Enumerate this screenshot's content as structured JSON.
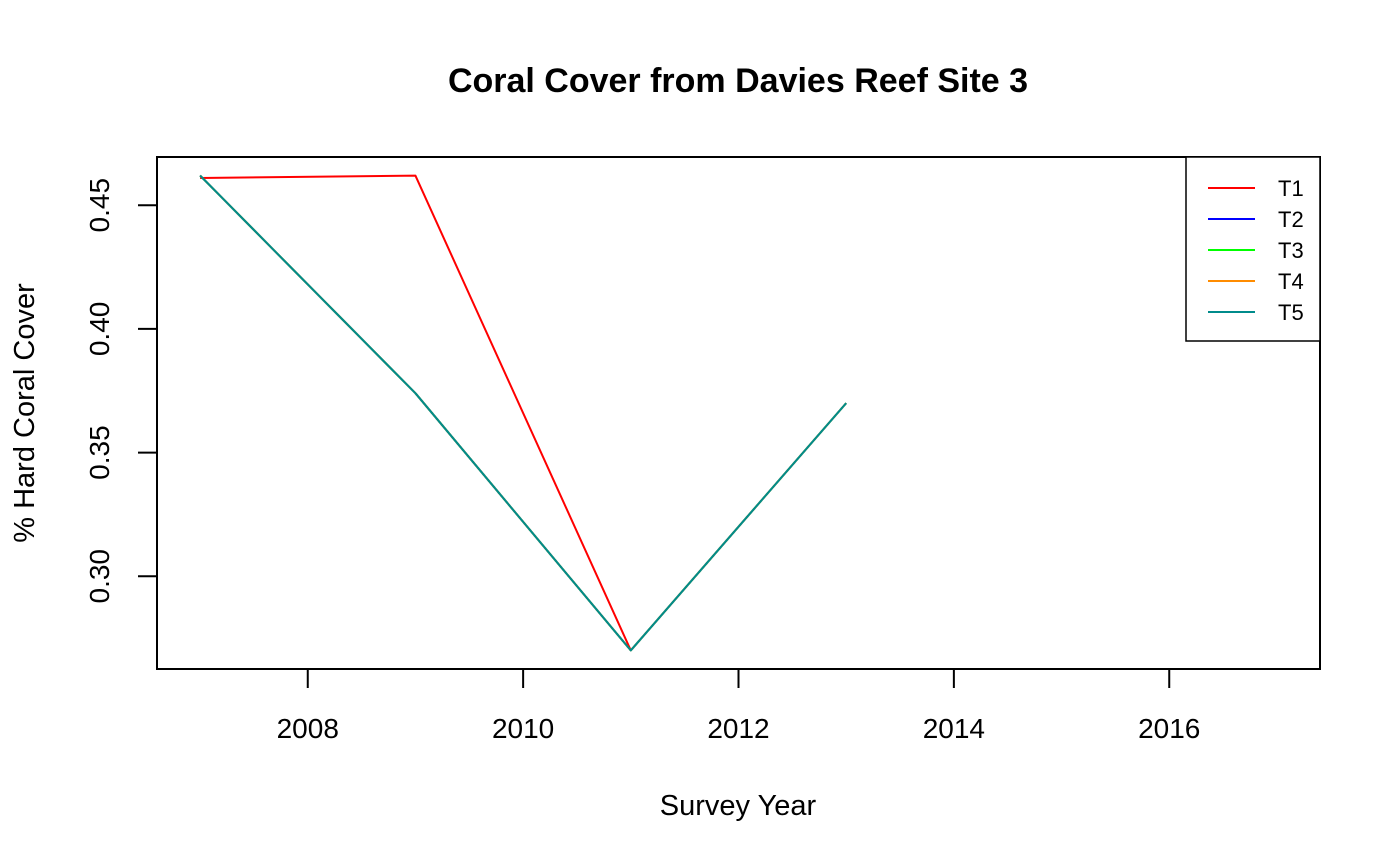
{
  "chart_data": {
    "type": "line",
    "title": "Coral Cover from Davies Reef Site 3",
    "xlabel": "Survey Year",
    "ylabel": "% Hard Coral Cover",
    "xlim": [
      2006.6,
      2017.4
    ],
    "ylim": [
      0.2625,
      0.4695
    ],
    "xticks": [
      2008,
      2010,
      2012,
      2014,
      2016
    ],
    "yticks": [
      0.3,
      0.35,
      0.4,
      0.45
    ],
    "xtick_labels": [
      "2008",
      "2010",
      "2012",
      "2014",
      "2016"
    ],
    "ytick_labels": [
      "0.30",
      "0.35",
      "0.40",
      "0.45"
    ],
    "grid": false,
    "legend_position": "top-right",
    "series": [
      {
        "name": "T1",
        "color": "#ff0000",
        "x": [
          2007,
          2009,
          2011
        ],
        "y": [
          0.461,
          0.462,
          0.27
        ]
      },
      {
        "name": "T2",
        "color": "#0000ff",
        "x": [
          2007,
          2009,
          2011,
          2013
        ],
        "y": [
          0.462,
          0.374,
          0.27,
          0.37
        ]
      },
      {
        "name": "T3",
        "color": "#00ff00",
        "x": [
          2007,
          2009,
          2011,
          2013
        ],
        "y": [
          0.462,
          0.374,
          0.27,
          0.37
        ]
      },
      {
        "name": "T4",
        "color": "#ff8c00",
        "x": [
          2007,
          2009,
          2011,
          2013
        ],
        "y": [
          0.462,
          0.374,
          0.27,
          0.37
        ]
      },
      {
        "name": "T5",
        "color": "#008b8b",
        "x": [
          2007,
          2009,
          2011,
          2013
        ],
        "y": [
          0.462,
          0.374,
          0.27,
          0.37
        ]
      }
    ]
  }
}
